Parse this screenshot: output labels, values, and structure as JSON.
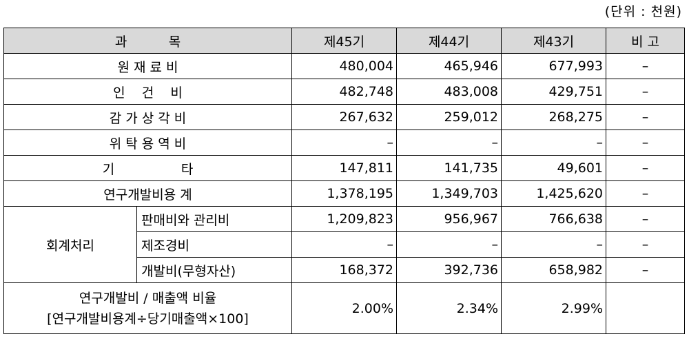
{
  "unit_note": "(단위 : 천원)",
  "headers": {
    "subject": "과          목",
    "y45": "제45기",
    "y44": "제44기",
    "y43": "제43기",
    "note": "비 고"
  },
  "rows": [
    {
      "label": "원 재 료 비",
      "v45": "480,004",
      "v44": "465,946",
      "v43": "677,993",
      "note": "–"
    },
    {
      "label": "인    건    비",
      "v45": "482,748",
      "v44": "483,008",
      "v43": "429,751",
      "note": "–"
    },
    {
      "label": "감 가 상 각 비",
      "v45": "267,632",
      "v44": "259,012",
      "v43": "268,275",
      "note": "–"
    },
    {
      "label": "위 탁 용 역 비",
      "v45": "–",
      "v44": "–",
      "v43": "–",
      "note": "–"
    },
    {
      "label": "기                타",
      "v45": "147,811",
      "v44": "141,735",
      "v43": "49,601",
      "note": "–"
    },
    {
      "label": "연구개발비용 계",
      "v45": "1,378,195",
      "v44": "1,349,703",
      "v43": "1,425,620",
      "note": "–"
    }
  ],
  "accounting": {
    "group_label": "회계처리",
    "rows": [
      {
        "label": "판매비와 관리비",
        "v45": "1,209,823",
        "v44": "956,967",
        "v43": "766,638",
        "note": "–"
      },
      {
        "label": "제조경비",
        "v45": "–",
        "v44": "–",
        "v43": "–",
        "note": "–"
      },
      {
        "label": "개발비(무형자산)",
        "v45": "168,372",
        "v44": "392,736",
        "v43": "658,982",
        "note": "–"
      }
    ]
  },
  "ratio": {
    "label_line1": "연구개발비 / 매출액 비율",
    "label_line2": "[연구개발비용계÷당기매출액×100]",
    "v45": "2.00%",
    "v44": "2.34%",
    "v43": "2.99%",
    "note": ""
  }
}
